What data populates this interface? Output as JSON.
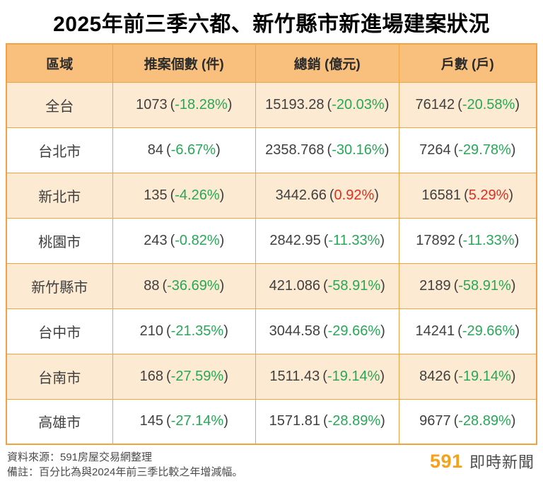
{
  "title": "2025年前三季六都、新竹縣市新進場建案狀況",
  "colors": {
    "header_bg": "#F9C07D",
    "alt_row_bg": "#FCEAD2",
    "border": "#F0A342",
    "negative_green": "#27A857",
    "positive_red": "#E02E1F",
    "text": "#404040",
    "brand_orange": "#F5A11C"
  },
  "format": {
    "open_paren": "(",
    "close_paren": ")"
  },
  "chart_data": {
    "type": "table",
    "title": "2025年前三季六都、新竹縣市新進場建案狀況",
    "columns": [
      "區域",
      "推案個數 (件)",
      "總銷 (億元)",
      "戶數 (戶)"
    ],
    "rows": [
      {
        "region": "全台",
        "cases": "1073",
        "cases_pct": "-18.28%",
        "sales": "15193.28",
        "sales_pct": "-20.03%",
        "households": "76142",
        "households_pct": "-20.58%"
      },
      {
        "region": "台北市",
        "cases": "84",
        "cases_pct": "-6.67%",
        "sales": "2358.768",
        "sales_pct": "-30.16%",
        "households": "7264",
        "households_pct": "-29.78%"
      },
      {
        "region": "新北市",
        "cases": "135",
        "cases_pct": "-4.26%",
        "sales": "3442.66",
        "sales_pct": "0.92%",
        "households": "16581",
        "households_pct": "5.29%"
      },
      {
        "region": "桃園市",
        "cases": "243",
        "cases_pct": "-0.82%",
        "sales": "2842.95",
        "sales_pct": "-11.33%",
        "households": "17892",
        "households_pct": "-11.33%"
      },
      {
        "region": "新竹縣市",
        "cases": "88",
        "cases_pct": "-36.69%",
        "sales": "421.086",
        "sales_pct": "-58.91%",
        "households": "2189",
        "households_pct": "-58.91%"
      },
      {
        "region": "台中市",
        "cases": "210",
        "cases_pct": "-21.35%",
        "sales": "3044.58",
        "sales_pct": "-29.66%",
        "households": "14241",
        "households_pct": "-29.66%"
      },
      {
        "region": "台南市",
        "cases": "168",
        "cases_pct": "-27.59%",
        "sales": "1511.43",
        "sales_pct": "-19.14%",
        "households": "8426",
        "households_pct": "-19.14%"
      },
      {
        "region": "高雄市",
        "cases": "145",
        "cases_pct": "-27.14%",
        "sales": "1571.81",
        "sales_pct": "-28.89%",
        "households": "9677",
        "households_pct": "-28.89%"
      }
    ]
  },
  "footer": {
    "source": "資料來源：591房屋交易網整理",
    "note": "備註：百分比為與2024年前三季比較之年增減幅。",
    "logo_number": "591",
    "logo_text": "即時新聞"
  }
}
